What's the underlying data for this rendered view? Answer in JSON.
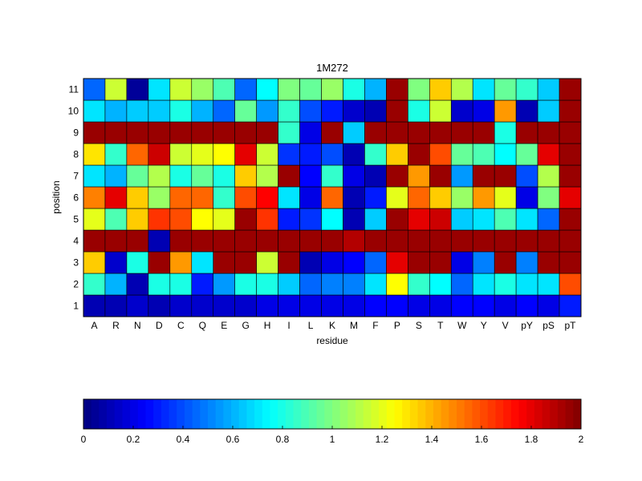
{
  "chart_data": {
    "type": "heatmap",
    "title": "1M272",
    "xlabel": "residue",
    "ylabel": "position",
    "x_categories": [
      "A",
      "R",
      "N",
      "D",
      "C",
      "Q",
      "E",
      "G",
      "H",
      "I",
      "L",
      "K",
      "M",
      "F",
      "P",
      "S",
      "T",
      "W",
      "Y",
      "V",
      "pY",
      "pS",
      "pT"
    ],
    "y_categories": [
      "1",
      "2",
      "3",
      "4",
      "5",
      "6",
      "7",
      "8",
      "9",
      "10",
      "11"
    ],
    "values": [
      [
        0.1,
        0.1,
        0.15,
        0.1,
        0.15,
        0.15,
        0.15,
        0.15,
        0.2,
        0.2,
        0.2,
        0.2,
        0.2,
        0.25,
        0.25,
        0.2,
        0.2,
        0.25,
        0.25,
        0.2,
        0.25,
        0.2,
        0.3
      ],
      [
        0.85,
        0.6,
        0.1,
        0.8,
        0.8,
        0.3,
        0.55,
        0.8,
        0.8,
        0.65,
        0.45,
        0.5,
        0.5,
        0.7,
        1.25,
        0.85,
        0.75,
        0.45,
        0.7,
        0.8,
        0.7,
        0.7,
        1.6
      ],
      [
        1.35,
        0.15,
        0.8,
        1.95,
        1.45,
        0.7,
        1.95,
        1.95,
        1.15,
        1.95,
        0.1,
        0.2,
        0.25,
        0.45,
        1.8,
        1.95,
        1.95,
        0.2,
        0.5,
        1.95,
        0.5,
        1.95,
        1.95
      ],
      [
        1.95,
        1.95,
        1.95,
        0.1,
        1.95,
        1.95,
        1.95,
        1.95,
        1.95,
        1.95,
        1.95,
        1.95,
        1.9,
        1.95,
        1.95,
        1.95,
        1.95,
        1.95,
        1.95,
        1.95,
        1.95,
        1.95,
        1.95
      ],
      [
        1.2,
        0.9,
        1.35,
        1.65,
        1.6,
        1.25,
        1.2,
        1.95,
        1.65,
        0.3,
        0.35,
        0.75,
        0.1,
        0.65,
        1.95,
        1.8,
        1.85,
        0.65,
        0.7,
        0.9,
        0.7,
        0.45,
        1.95
      ],
      [
        1.5,
        1.8,
        1.35,
        1.05,
        1.55,
        1.55,
        0.85,
        1.6,
        1.75,
        0.7,
        0.2,
        1.55,
        0.1,
        0.3,
        1.2,
        1.55,
        1.35,
        1.05,
        1.45,
        1.2,
        0.2,
        1.0,
        1.8
      ],
      [
        0.7,
        0.6,
        0.95,
        1.1,
        0.8,
        0.95,
        0.8,
        1.35,
        1.1,
        1.95,
        0.25,
        0.85,
        0.2,
        0.1,
        1.95,
        1.45,
        1.95,
        0.55,
        1.95,
        1.95,
        0.4,
        1.1,
        1.95
      ],
      [
        1.3,
        0.85,
        1.55,
        1.85,
        1.15,
        1.2,
        1.25,
        1.8,
        1.15,
        0.35,
        0.3,
        0.4,
        0.1,
        0.85,
        1.35,
        1.95,
        1.6,
        0.95,
        0.9,
        0.75,
        0.95,
        1.8,
        1.95
      ],
      [
        1.95,
        1.95,
        1.95,
        1.95,
        1.95,
        1.95,
        1.95,
        1.95,
        1.95,
        0.85,
        0.2,
        1.95,
        0.65,
        1.95,
        1.95,
        1.95,
        1.95,
        1.95,
        1.95,
        0.8,
        1.95,
        1.95,
        1.95
      ],
      [
        0.7,
        0.6,
        0.65,
        0.65,
        0.8,
        0.6,
        0.45,
        0.95,
        0.55,
        0.85,
        0.4,
        0.3,
        0.15,
        0.1,
        1.95,
        0.8,
        1.15,
        0.15,
        0.2,
        1.45,
        0.1,
        0.65,
        1.95
      ],
      [
        0.45,
        1.15,
        0.05,
        0.7,
        1.15,
        1.05,
        0.9,
        0.45,
        0.75,
        1.0,
        0.95,
        1.05,
        0.8,
        0.6,
        1.95,
        1.0,
        1.35,
        1.1,
        0.7,
        0.95,
        0.85,
        0.65,
        1.95
      ]
    ],
    "colorbar": {
      "range": [
        0,
        2
      ],
      "ticks": [
        "0",
        "0.2",
        "0.4",
        "0.6",
        "0.8",
        "1",
        "1.2",
        "1.4",
        "1.6",
        "1.8",
        "2"
      ],
      "tick_values": [
        0,
        0.2,
        0.4,
        0.6,
        0.8,
        1.0,
        1.2,
        1.4,
        1.6,
        1.8,
        2.0
      ],
      "colormap": "jet"
    },
    "grid": false
  }
}
